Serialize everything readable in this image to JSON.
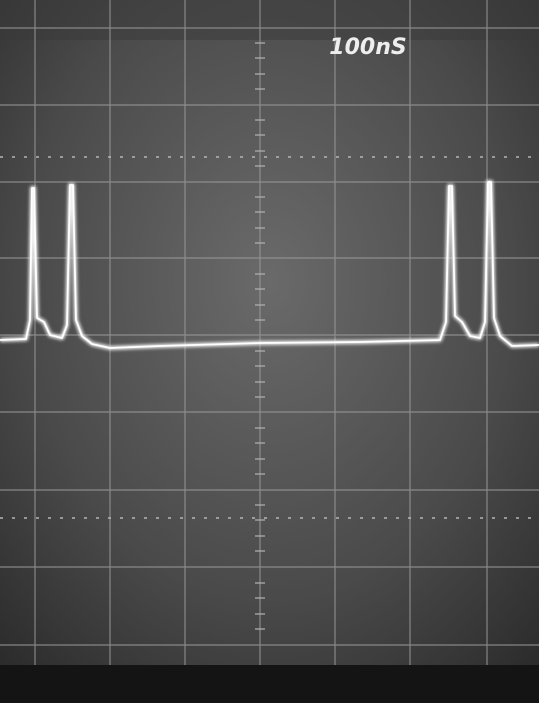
{
  "screen": {
    "timebase_label": "100nS"
  }
}
